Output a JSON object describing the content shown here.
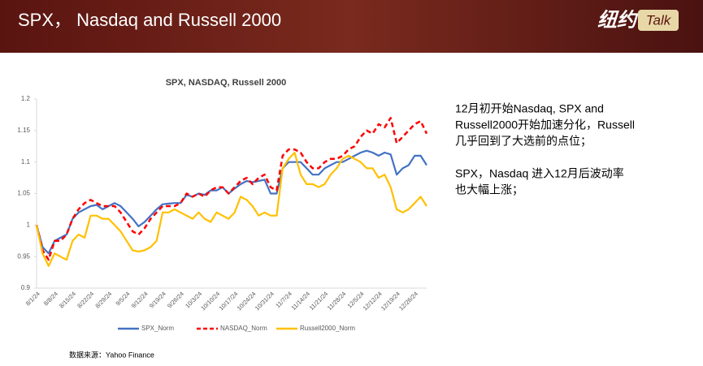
{
  "slide_title": "SPX， Nasdaq and Russell 2000",
  "logo": {
    "cn": "纽约",
    "en": "Talk"
  },
  "commentary": [
    "12月初开始Nasdaq, SPX and",
    "Russell2000开始加速分化，Russell",
    "几乎回到了大选前的点位；",
    "SPX，Nasdaq 进入12月后波动率",
    "也大幅上涨；"
  ],
  "source": "数据来源：Yahoo Finance",
  "chart_data": {
    "type": "line",
    "title": "SPX, NASDAQ, Russell 2000",
    "categories": [
      "8/1/24",
      null,
      null,
      "8/8/24",
      null,
      null,
      "8/15/24",
      null,
      null,
      "8/22/24",
      null,
      null,
      "8/29/24",
      null,
      null,
      "9/5/24",
      null,
      null,
      "9/12/24",
      null,
      null,
      "9/19/24",
      null,
      null,
      "9/26/24",
      null,
      null,
      "10/3/24",
      null,
      null,
      "10/10/24",
      null,
      null,
      "10/17/24",
      null,
      null,
      "10/24/24",
      null,
      null,
      "10/31/24",
      null,
      null,
      "11/7/24",
      null,
      null,
      "11/14/24",
      null,
      null,
      "11/21/24",
      null,
      null,
      "11/28/24",
      null,
      null,
      "12/5/24",
      null,
      null,
      "12/12/24",
      null,
      null,
      "12/19/24",
      null,
      null,
      "12/26/24",
      null,
      null
    ],
    "series": [
      {
        "name": "SPX_Norm",
        "color": "#4472c4",
        "line_style": "solid",
        "values": [
          1.0,
          0.965,
          0.955,
          0.975,
          0.98,
          0.985,
          1.01,
          1.02,
          1.025,
          1.03,
          1.032,
          1.025,
          1.03,
          1.035,
          1.03,
          1.02,
          1.01,
          0.998,
          1.005,
          1.015,
          1.025,
          1.033,
          1.034,
          1.035,
          1.035,
          1.048,
          1.045,
          1.05,
          1.048,
          1.055,
          1.055,
          1.06,
          1.05,
          1.058,
          1.065,
          1.07,
          1.068,
          1.07,
          1.072,
          1.05,
          1.05,
          1.09,
          1.1,
          1.1,
          1.1,
          1.09,
          1.08,
          1.08,
          1.09,
          1.095,
          1.1,
          1.1,
          1.105,
          1.11,
          1.115,
          1.118,
          1.115,
          1.11,
          1.115,
          1.112,
          1.08,
          1.09,
          1.095,
          1.11,
          1.11,
          1.095
        ]
      },
      {
        "name": "NASDAQ_Norm",
        "color": "#ff0000",
        "line_style": "dashed",
        "values": [
          1.0,
          0.96,
          0.945,
          0.975,
          0.975,
          0.985,
          1.01,
          1.025,
          1.035,
          1.04,
          1.035,
          1.03,
          1.03,
          1.03,
          1.02,
          1.005,
          0.99,
          0.985,
          0.995,
          1.01,
          1.02,
          1.03,
          1.03,
          1.03,
          1.035,
          1.05,
          1.045,
          1.05,
          1.045,
          1.055,
          1.06,
          1.06,
          1.05,
          1.06,
          1.07,
          1.075,
          1.065,
          1.075,
          1.08,
          1.06,
          1.055,
          1.11,
          1.12,
          1.12,
          1.115,
          1.1,
          1.09,
          1.09,
          1.1,
          1.105,
          1.105,
          1.11,
          1.12,
          1.125,
          1.14,
          1.15,
          1.145,
          1.16,
          1.155,
          1.17,
          1.13,
          1.14,
          1.15,
          1.16,
          1.165,
          1.145
        ]
      },
      {
        "name": "Russell2000_Norm",
        "color": "#ffc000",
        "line_style": "solid",
        "values": [
          1.0,
          0.955,
          0.935,
          0.955,
          0.95,
          0.945,
          0.975,
          0.985,
          0.98,
          1.015,
          1.015,
          1.01,
          1.01,
          1.0,
          0.99,
          0.975,
          0.96,
          0.958,
          0.96,
          0.965,
          0.975,
          1.02,
          1.02,
          1.025,
          1.02,
          1.015,
          1.01,
          1.02,
          1.01,
          1.005,
          1.02,
          1.015,
          1.01,
          1.02,
          1.045,
          1.04,
          1.03,
          1.015,
          1.02,
          1.015,
          1.015,
          1.09,
          1.105,
          1.115,
          1.08,
          1.065,
          1.065,
          1.06,
          1.065,
          1.08,
          1.09,
          1.105,
          1.11,
          1.105,
          1.1,
          1.09,
          1.09,
          1.075,
          1.08,
          1.06,
          1.025,
          1.02,
          1.025,
          1.035,
          1.045,
          1.03
        ]
      }
    ],
    "ylim": [
      0.9,
      1.2
    ],
    "yticks": [
      0.9,
      0.95,
      1,
      1.05,
      1.1,
      1.15,
      1.2
    ],
    "grid": false,
    "legend": "bottom"
  }
}
